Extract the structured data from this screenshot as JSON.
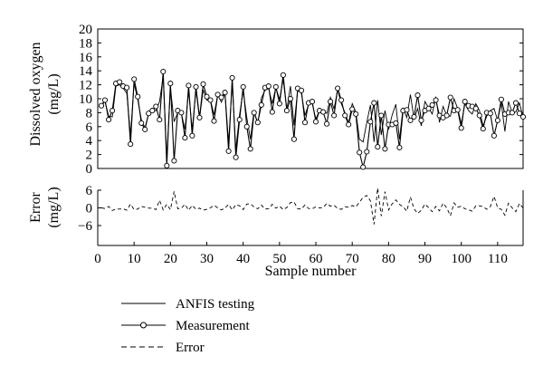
{
  "chart_data": [
    {
      "type": "line",
      "ylabel": "Dissolved oxygen (mg/L)",
      "ylabel_line1": "Dissolved oxygen",
      "ylabel_line2": "(mg/L)",
      "ylim": [
        0,
        20
      ],
      "yticks": [
        "0",
        "2",
        "4",
        "6",
        "8",
        "10",
        "12",
        "14",
        "16",
        "18",
        "20"
      ],
      "xlim": [
        0,
        117
      ],
      "xticks": [
        "0",
        "10",
        "20",
        "30",
        "40",
        "50",
        "60",
        "70",
        "80",
        "90",
        "100",
        "110"
      ],
      "grid": false,
      "x": [
        1,
        2,
        3,
        4,
        5,
        6,
        7,
        8,
        9,
        10,
        11,
        12,
        13,
        14,
        15,
        16,
        17,
        18,
        19,
        20,
        21,
        22,
        23,
        24,
        25,
        26,
        27,
        28,
        29,
        30,
        31,
        32,
        33,
        34,
        35,
        36,
        37,
        38,
        39,
        40,
        41,
        42,
        43,
        44,
        45,
        46,
        47,
        48,
        49,
        50,
        51,
        52,
        53,
        54,
        55,
        56,
        57,
        58,
        59,
        60,
        61,
        62,
        63,
        64,
        65,
        66,
        67,
        68,
        69,
        70,
        71,
        72,
        73,
        74,
        75,
        76,
        77,
        78,
        79,
        80,
        81,
        82,
        83,
        84,
        85,
        86,
        87,
        88,
        89,
        90,
        91,
        92,
        93,
        94,
        95,
        96,
        97,
        98,
        99,
        100,
        101,
        102,
        103,
        104,
        105,
        106,
        107,
        108,
        109,
        110,
        111,
        112,
        113,
        114,
        115,
        116,
        117
      ],
      "series": [
        {
          "name": "ANFIS testing",
          "style": "solid",
          "values": [
            9.0,
            9.6,
            7.5,
            7.4,
            11.8,
            12.0,
            11.5,
            10.8,
            4.8,
            12.2,
            9.9,
            7.0,
            5.8,
            7.8,
            8.2,
            8.3,
            9.6,
            13.2,
            1.6,
            11.6,
            6.7,
            8.0,
            7.9,
            5.6,
            11.1,
            5.6,
            11.2,
            7.2,
            11.3,
            9.8,
            9.8,
            7.7,
            10.6,
            9.5,
            10.8,
            3.7,
            12.3,
            2.7,
            7.7,
            11.1,
            7.3,
            4.2,
            8.3,
            6.3,
            10.1,
            11.2,
            11.5,
            9.3,
            11.6,
            9.9,
            12.8,
            8.4,
            11.8,
            6.2,
            11.2,
            10.8,
            7.6,
            9.2,
            9.3,
            7.1,
            8.3,
            8.2,
            7.9,
            10.2,
            8.5,
            11.3,
            9.3,
            8.0,
            6.5,
            9.3,
            8.1,
            4.2,
            3.8,
            6.6,
            9.1,
            3.8,
            9.8,
            4.8,
            8.3,
            5.6,
            7.7,
            9.2,
            4.2,
            8.7,
            7.3,
            10.6,
            7.1,
            8.6,
            6.1,
            9.6,
            8.7,
            7.8,
            10.3,
            6.6,
            8.9,
            7.6,
            7.5,
            10.0,
            8.6,
            6.4,
            9.3,
            8.3,
            7.8,
            9.3,
            8.3,
            6.1,
            7.5,
            8.3,
            8.6,
            6.9,
            9.4,
            5.3,
            9.6,
            8.0,
            8.1,
            9.4,
            7.3
          ]
        },
        {
          "name": "Measurement",
          "style": "solid-with-circles",
          "values": [
            9.0,
            9.8,
            7.0,
            8.3,
            12.2,
            12.4,
            11.8,
            11.6,
            3.5,
            12.8,
            10.3,
            6.5,
            5.6,
            7.9,
            8.3,
            8.9,
            7.0,
            13.9,
            0.4,
            12.2,
            1.1,
            8.3,
            8.0,
            4.4,
            11.9,
            4.7,
            11.7,
            7.3,
            12.1,
            10.3,
            9.8,
            6.8,
            10.6,
            10.2,
            10.9,
            2.5,
            13.0,
            1.6,
            7.0,
            11.7,
            6.0,
            2.8,
            8.0,
            6.6,
            9.1,
            11.6,
            11.8,
            8.1,
            11.7,
            9.3,
            13.4,
            8.3,
            10.0,
            4.2,
            11.5,
            11.2,
            6.6,
            9.4,
            9.6,
            6.7,
            8.3,
            8.1,
            6.4,
            9.6,
            7.6,
            11.5,
            9.8,
            7.6,
            6.3,
            8.5,
            7.8,
            2.3,
            0.2,
            2.4,
            6.7,
            9.4,
            3.1,
            7.6,
            2.8,
            6.3,
            6.3,
            6.5,
            3.0,
            8.3,
            8.4,
            6.9,
            7.4,
            10.5,
            6.9,
            8.3,
            8.6,
            9.1,
            9.8,
            7.6,
            7.3,
            7.6,
            10.2,
            8.3,
            8.4,
            5.8,
            9.6,
            9.0,
            8.9,
            8.6,
            7.6,
            5.7,
            8.0,
            7.9,
            4.7,
            6.9,
            9.9,
            7.8,
            8.0,
            8.0,
            9.4,
            7.9,
            7.4
          ]
        }
      ]
    },
    {
      "type": "line",
      "ylabel": "Error (mg/L)",
      "ylabel_line1": "Error",
      "ylabel_line2": "(mg/L)",
      "ylim": [
        -6,
        6
      ],
      "yticks": [
        "6",
        "0",
        "−6"
      ],
      "xlim": [
        0,
        117
      ],
      "xlabel": "Sample number",
      "grid": false,
      "series": [
        {
          "name": "Error",
          "style": "dashed",
          "values": [
            0.0,
            -0.2,
            0.5,
            -0.9,
            -0.4,
            -0.4,
            -0.3,
            -0.8,
            1.3,
            -0.6,
            -0.4,
            0.5,
            0.2,
            -0.1,
            -0.1,
            -0.6,
            2.6,
            -0.7,
            1.2,
            -0.6,
            5.6,
            -0.3,
            -0.1,
            1.2,
            -0.8,
            0.9,
            -0.5,
            -0.1,
            -0.8,
            -0.5,
            0.0,
            0.9,
            0.0,
            -0.7,
            -0.1,
            1.2,
            -0.7,
            1.1,
            0.7,
            -0.6,
            1.3,
            1.4,
            0.3,
            -0.3,
            1.0,
            -0.4,
            -0.3,
            1.2,
            -0.1,
            0.6,
            -0.6,
            0.1,
            1.8,
            2.0,
            -0.3,
            -0.4,
            1.0,
            -0.2,
            -0.3,
            0.4,
            0.0,
            0.1,
            1.5,
            0.6,
            0.9,
            -0.2,
            -0.5,
            0.4,
            0.2,
            0.8,
            0.3,
            1.9,
            3.6,
            4.2,
            2.4,
            -5.6,
            6.7,
            -2.8,
            5.5,
            -0.7,
            1.4,
            2.7,
            1.2,
            0.4,
            -1.1,
            3.7,
            -0.3,
            -1.9,
            -0.8,
            1.3,
            0.1,
            -1.3,
            0.5,
            -1.0,
            1.6,
            0.0,
            -2.7,
            1.7,
            0.2,
            0.6,
            -0.3,
            -0.7,
            -1.1,
            0.7,
            0.7,
            0.4,
            -0.5,
            0.4,
            3.9,
            0.0,
            -0.5,
            -2.5,
            1.6,
            0.0,
            -1.3,
            1.5,
            -0.1
          ]
        }
      ]
    }
  ],
  "legend": {
    "placement": "bottom-left",
    "items": [
      {
        "label": "ANFIS testing",
        "style": "solid"
      },
      {
        "label": "Measurement",
        "style": "solid-with-circles"
      },
      {
        "label": "Error",
        "style": "dashed"
      }
    ]
  }
}
